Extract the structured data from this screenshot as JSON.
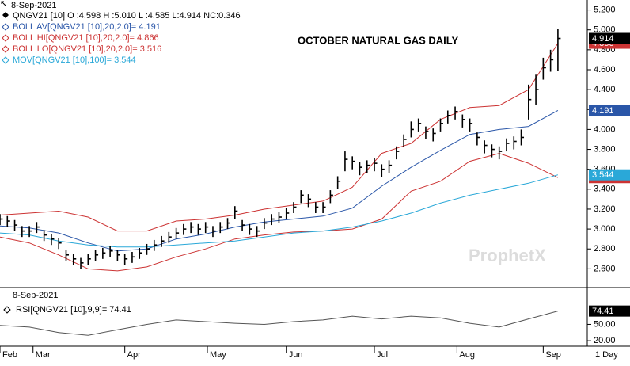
{
  "chart_data": [
    {
      "type": "ohlc",
      "date": "8-Sep-2021",
      "title": "OCTOBER NATURAL GAS DAILY",
      "watermark": "ProphetX",
      "quote": "QNGV21 [10] O :4.598 H :5.010 L :4.585 L:4.914 NC:0.346",
      "interval": "1 Day",
      "color": "#000000",
      "x": [
        0,
        2,
        4,
        6,
        8,
        10,
        12,
        14,
        16,
        18,
        20,
        22,
        24,
        26,
        28,
        30,
        32,
        34,
        36,
        38,
        40,
        42,
        44,
        46,
        48,
        50,
        52,
        54,
        56,
        58,
        60,
        62,
        64,
        66,
        68,
        70,
        72,
        74,
        76,
        78,
        80,
        82,
        84,
        86,
        88,
        90,
        92,
        94,
        96,
        98,
        100,
        102,
        104,
        106,
        108,
        110,
        112,
        114,
        116,
        118,
        120,
        122,
        124,
        126,
        128,
        130,
        132,
        134,
        136,
        138,
        140,
        142,
        144,
        146,
        148,
        150,
        152
      ],
      "high": [
        3.15,
        3.13,
        3.09,
        3.03,
        3.03,
        3.07,
        2.99,
        2.95,
        2.91,
        2.79,
        2.75,
        2.71,
        2.75,
        2.79,
        2.81,
        2.83,
        2.79,
        2.75,
        2.77,
        2.81,
        2.85,
        2.89,
        2.93,
        2.97,
        3.01,
        3.05,
        3.07,
        3.05,
        3.07,
        3.03,
        3.07,
        3.11,
        3.23,
        3.09,
        3.05,
        3.03,
        3.11,
        3.15,
        3.17,
        3.21,
        3.27,
        3.39,
        3.35,
        3.27,
        3.27,
        3.39,
        3.53,
        3.78,
        3.73,
        3.67,
        3.69,
        3.71,
        3.65,
        3.69,
        3.83,
        3.95,
        4.08,
        4.11,
        4.03,
        4.01,
        4.11,
        4.19,
        4.23,
        4.15,
        4.11,
        3.97,
        3.89,
        3.85,
        3.83,
        3.91,
        3.93,
        4.0,
        4.45,
        4.55,
        4.72,
        4.8,
        5.01
      ],
      "low": [
        3.04,
        3.02,
        2.98,
        2.92,
        2.92,
        2.96,
        2.88,
        2.84,
        2.8,
        2.68,
        2.64,
        2.6,
        2.64,
        2.68,
        2.7,
        2.72,
        2.68,
        2.64,
        2.66,
        2.7,
        2.74,
        2.78,
        2.82,
        2.86,
        2.9,
        2.94,
        2.96,
        2.94,
        2.96,
        2.92,
        2.96,
        3.0,
        3.1,
        2.98,
        2.94,
        2.92,
        3.0,
        3.04,
        3.06,
        3.1,
        3.16,
        3.26,
        3.22,
        3.16,
        3.16,
        3.26,
        3.4,
        3.58,
        3.6,
        3.54,
        3.56,
        3.58,
        3.52,
        3.56,
        3.7,
        3.82,
        3.92,
        3.98,
        3.9,
        3.88,
        3.98,
        4.06,
        4.1,
        4.02,
        3.98,
        3.84,
        3.76,
        3.72,
        3.7,
        3.78,
        3.8,
        3.84,
        4.1,
        4.25,
        4.5,
        4.58,
        4.585
      ],
      "close": [
        3.1,
        3.08,
        3.04,
        2.98,
        2.98,
        3.02,
        2.94,
        2.9,
        2.86,
        2.74,
        2.7,
        2.66,
        2.7,
        2.74,
        2.76,
        2.78,
        2.74,
        2.7,
        2.72,
        2.76,
        2.8,
        2.84,
        2.88,
        2.92,
        2.96,
        3.0,
        3.02,
        3.0,
        3.02,
        2.98,
        3.02,
        3.06,
        3.18,
        3.04,
        3.0,
        2.98,
        3.06,
        3.1,
        3.12,
        3.16,
        3.22,
        3.34,
        3.3,
        3.22,
        3.22,
        3.34,
        3.48,
        3.7,
        3.68,
        3.62,
        3.64,
        3.66,
        3.6,
        3.64,
        3.78,
        3.9,
        4.0,
        4.06,
        3.98,
        3.96,
        4.06,
        4.14,
        4.18,
        4.1,
        4.06,
        3.92,
        3.84,
        3.8,
        3.78,
        3.86,
        3.88,
        3.92,
        4.3,
        4.4,
        4.62,
        4.7,
        4.914
      ],
      "overlays": [
        {
          "name": "BOLL AV[QNGV21 [10],20,2.0]= 4.191",
          "color": "#2a56a8",
          "x": [
            0,
            8,
            16,
            24,
            32,
            40,
            48,
            56,
            64,
            72,
            80,
            88,
            96,
            104,
            112,
            120,
            128,
            136,
            144,
            152
          ],
          "values": [
            3.03,
            3.01,
            2.96,
            2.86,
            2.78,
            2.8,
            2.9,
            2.95,
            3.02,
            3.07,
            3.1,
            3.13,
            3.21,
            3.43,
            3.62,
            3.79,
            3.95,
            4.0,
            4.03,
            4.191
          ]
        },
        {
          "name": "BOLL HI[QNGV21 [10],20,2.0]= 4.866",
          "color": "#cc3333",
          "x": [
            0,
            8,
            16,
            24,
            32,
            40,
            48,
            56,
            64,
            72,
            80,
            88,
            96,
            104,
            112,
            120,
            128,
            136,
            144,
            152
          ],
          "values": [
            3.14,
            3.16,
            3.18,
            3.12,
            2.98,
            2.98,
            3.08,
            3.1,
            3.14,
            3.2,
            3.24,
            3.28,
            3.42,
            3.76,
            3.86,
            4.1,
            4.22,
            4.24,
            4.4,
            4.866
          ]
        },
        {
          "name": "BOLL LO[QNGV21 [10],20,2.0]= 3.516",
          "color": "#cc3333",
          "x": [
            0,
            8,
            16,
            24,
            32,
            40,
            48,
            56,
            64,
            72,
            80,
            88,
            96,
            104,
            112,
            120,
            128,
            136,
            144,
            152
          ],
          "values": [
            2.92,
            2.86,
            2.74,
            2.6,
            2.58,
            2.62,
            2.72,
            2.8,
            2.9,
            2.94,
            2.97,
            2.98,
            3.0,
            3.1,
            3.38,
            3.48,
            3.68,
            3.76,
            3.66,
            3.516
          ]
        },
        {
          "name": "MOV[QNGV21 [10],100]= 3.544",
          "color": "#2aa8d8",
          "x": [
            0,
            8,
            16,
            24,
            32,
            40,
            48,
            56,
            64,
            72,
            80,
            88,
            96,
            104,
            112,
            120,
            128,
            136,
            144,
            152
          ],
          "values": [
            2.96,
            2.94,
            2.88,
            2.84,
            2.82,
            2.82,
            2.84,
            2.86,
            2.88,
            2.92,
            2.96,
            2.98,
            3.02,
            3.08,
            3.16,
            3.26,
            3.34,
            3.4,
            3.46,
            3.544
          ]
        }
      ],
      "xlim": [
        0,
        160
      ],
      "ylim": [
        2.42,
        5.3
      ],
      "yticks": [
        {
          "value": 2.6,
          "label": "2.600"
        },
        {
          "value": 2.8,
          "label": "2.800"
        },
        {
          "value": 3.0,
          "label": "3.000"
        },
        {
          "value": 3.2,
          "label": "3.200"
        },
        {
          "value": 3.4,
          "label": "3.400"
        },
        {
          "value": 3.6,
          "label": "3.600"
        },
        {
          "value": 3.8,
          "label": "3.800"
        },
        {
          "value": 4.0,
          "label": "4.000"
        },
        {
          "value": 4.2,
          "label": "4.200"
        },
        {
          "value": 4.4,
          "label": "4.400"
        },
        {
          "value": 4.6,
          "label": "4.600"
        },
        {
          "value": 4.8,
          "label": "4.800"
        },
        {
          "value": 5.0,
          "label": "5.000"
        },
        {
          "value": 5.2,
          "label": "5.200"
        }
      ],
      "xticks": [
        {
          "value": 0,
          "label": "Feb"
        },
        {
          "value": 9,
          "label": "Mar"
        },
        {
          "value": 34,
          "label": "Apr"
        },
        {
          "value": 56.5,
          "label": "May"
        },
        {
          "value": 78,
          "label": "Jun"
        },
        {
          "value": 102,
          "label": "Jul"
        },
        {
          "value": 124.5,
          "label": "Aug"
        },
        {
          "value": 148,
          "label": "Sep"
        }
      ]
    },
    {
      "type": "line",
      "date": "8-Sep-2021",
      "x": [
        0,
        8,
        16,
        24,
        32,
        40,
        48,
        56,
        64,
        72,
        80,
        88,
        96,
        104,
        112,
        120,
        128,
        136,
        144,
        152
      ],
      "series": [
        {
          "name": "RSI[QNGV21 [10],9,9]= 74.41",
          "color": "#555555",
          "values": [
            48,
            45,
            35,
            30,
            40,
            50,
            58,
            55,
            52,
            50,
            55,
            58,
            65,
            60,
            65,
            62,
            52,
            45,
            60,
            74.41
          ]
        }
      ],
      "xlim": [
        0,
        160
      ],
      "ylim": [
        10,
        116
      ],
      "yticks": [
        {
          "value": 20,
          "label": "20.00"
        },
        {
          "value": 50,
          "label": "50.00"
        }
      ]
    }
  ]
}
